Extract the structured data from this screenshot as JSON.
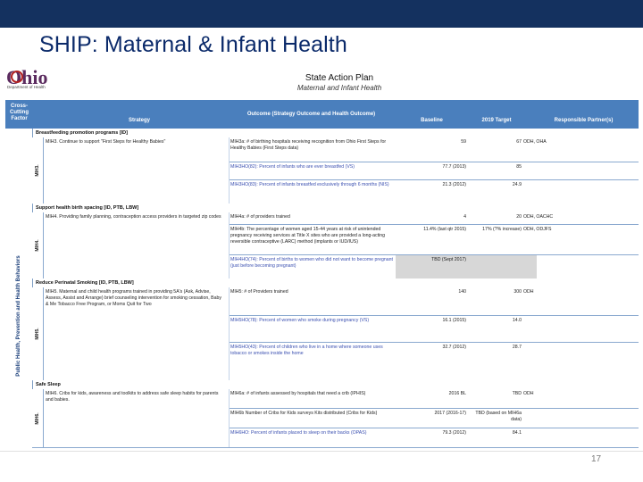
{
  "slide": {
    "title": "SHIP: Maternal & Infant Health",
    "page_number": "17"
  },
  "logo": {
    "word": "Ohio",
    "sub": "Department of Health"
  },
  "plan": {
    "title": "State Action Plan",
    "subtitle": "Maternal and Infant Health"
  },
  "header": {
    "cross_cutting": "Cross-Cutting Factor",
    "strategy": "Strategy",
    "outcome": "Outcome (Strategy Outcome and Health Outcome)",
    "baseline": "Baseline",
    "target": "2019 Target",
    "partners": "Responsible Partner(s)"
  },
  "side_label": "Public Health, Prevention and Health Behaviors",
  "sections": [
    {
      "title": "Breastfeeding promotion programs [ID]",
      "goal": "MIH3.",
      "strategy": "MIH3. Continue to support \"First Steps for Healthy Babies\"",
      "rows": [
        {
          "outcome": "MIH3a: # of birthing hospitals receiving recognition from Ohio First Steps for Healthy Babies (First Steps data)",
          "baseline": "59",
          "target": "67",
          "partners": "ODH, OHA",
          "hl": false
        },
        {
          "outcome": "MIH3HO(82): Percent of infants who are ever breastfed (VS)",
          "baseline": "77.7 (2013)",
          "target": "85",
          "partners": "",
          "hl": true
        },
        {
          "outcome": "MIH3HO(83): Percent of infants breastfed exclusively through 6 months (NIS)",
          "baseline": "21.3 (2012)",
          "target": "24.9",
          "partners": "",
          "hl": true
        }
      ]
    },
    {
      "title": "Support health birth spacing [ID, PTB, LBW]",
      "goal": "MIH4.",
      "strategy": "MIH4. Providing family planning, contraception access providers in targeted zip codes",
      "rows": [
        {
          "outcome": "MIH4a: # of providers trained",
          "baseline": "4",
          "target": "20",
          "partners": "ODH, OACHC",
          "hl": false
        },
        {
          "outcome": "MIH4b: The percentage of women aged 15-44 years at risk of unintended pregnancy receiving services at Title X sites who are provided a long-acting reversible contraceptive (LARC) method (implants or IUD/IUS)",
          "baseline": "11.4% (last qtr 2015)",
          "target": "17% (?% increase)",
          "partners": "ODH, ODJFS",
          "hl": false
        },
        {
          "outcome": "MIH4HO(74): Percent of births to women who did not want to become pregnant (just before becoming pregnant)",
          "baseline": "TBD (Sept 2017)",
          "target": "",
          "partners": "",
          "hl": true
        }
      ]
    },
    {
      "title": "Reduce Perinatal Smoking [ID, PTB, LBW]",
      "goal": "MIH5.",
      "strategy": "MIH5. Maternal and child health programs trained in providing 5A's (Ask, Advise, Assess, Assist and Arrange) brief counseling intervention for smoking cessation, Baby & Me Tobacco Free Program, or Moms Quit for Two",
      "rows": [
        {
          "outcome": "MIH5: # of Providers trained",
          "baseline": "140",
          "target": "300",
          "partners": "ODH",
          "hl": false
        },
        {
          "outcome": "MIH5HO(78): Percent of women who smoke during pregnancy (VS)",
          "baseline": "16.1 (2015)",
          "target": "14.0",
          "partners": "",
          "hl": true
        },
        {
          "outcome": "MIH5HO(43): Percent of children who live in a home where someone uses tobacco or smokes inside the home",
          "baseline": "32.7 (2012)",
          "target": "28.7",
          "partners": "",
          "hl": true
        }
      ]
    },
    {
      "title": "Safe Sleep",
      "goal": "MIH6.",
      "strategy": "MIH6. Cribs for kids, awareness and toolkits to address safe sleep habits for parents and babies.",
      "rows": [
        {
          "outcome": "MIH6a: # of infants assessed by hospitals that need a crib (IPHIS)",
          "baseline": "2016 BL",
          "target": "TBD",
          "partners": "ODH",
          "hl": false
        },
        {
          "outcome": "MIH6b Number of Cribs for Kids surveys Kits distributed (Cribs for Kids)",
          "baseline": "2017 (2016-17)",
          "target": "TBD (based on MIH6a data)",
          "partners": "",
          "hl": false
        },
        {
          "outcome": "MIH6HO: Percent of infants placed to sleep on their backs (OPAS)",
          "baseline": "79.3 (2012)",
          "target": "84.1",
          "partners": "",
          "hl": true
        }
      ]
    }
  ],
  "colors": {
    "topbar": "#14315f",
    "title": "#0b2a6a",
    "header": "#4a7fbd"
  }
}
